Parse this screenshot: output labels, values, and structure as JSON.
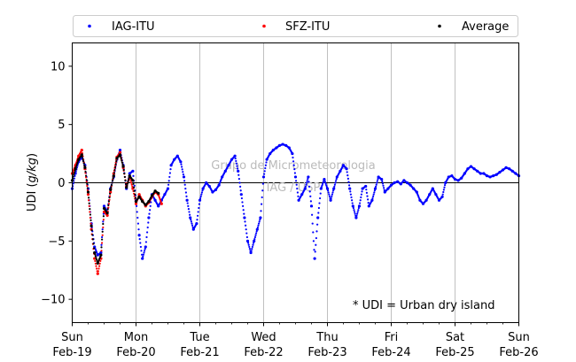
{
  "chart_data": {
    "type": "scatter",
    "ylabel": "UDI (g/kg)",
    "ylabel_prefix": "UDI (",
    "ylabel_unit": "g/kg",
    "ylabel_suffix": ")",
    "ylim": [
      -12,
      12
    ],
    "yticks": [
      -10,
      -5,
      0,
      5,
      10
    ],
    "xlim": [
      "2017-02-19",
      "2017-02-26"
    ],
    "xticks": [
      {
        "weekday": "Sun",
        "date": "Feb-19"
      },
      {
        "weekday": "Mon",
        "date": "Feb-20"
      },
      {
        "weekday": "Tue",
        "date": "Feb-21"
      },
      {
        "weekday": "Wed",
        "date": "Feb-22"
      },
      {
        "weekday": "Thu",
        "date": "Feb-23"
      },
      {
        "weekday": "Fri",
        "date": "Feb-24"
      },
      {
        "weekday": "Sat",
        "date": "Feb-25"
      },
      {
        "weekday": "Sun",
        "date": "Feb-26"
      }
    ],
    "grid": "vertical",
    "zero_line": true,
    "legend_position": "top, outside plot",
    "annotation": "* UDI = Urban dry island",
    "watermark": [
      "Grupo de Micrometeorologia",
      "IAG / USP"
    ],
    "series": [
      {
        "name": "IAG-ITU",
        "color": "#0000ff",
        "x": [
          0.0,
          0.05,
          0.1,
          0.15,
          0.2,
          0.25,
          0.3,
          0.35,
          0.4,
          0.45,
          0.5,
          0.55,
          0.6,
          0.65,
          0.7,
          0.75,
          0.8,
          0.85,
          0.9,
          0.95,
          1.0,
          1.05,
          1.1,
          1.15,
          1.2,
          1.25,
          1.3,
          1.35,
          1.4,
          1.45,
          1.5,
          1.55,
          1.6,
          1.65,
          1.7,
          1.75,
          1.8,
          1.85,
          1.9,
          1.95,
          2.0,
          2.05,
          2.1,
          2.15,
          2.2,
          2.25,
          2.3,
          2.35,
          2.4,
          2.45,
          2.5,
          2.55,
          2.6,
          2.65,
          2.7,
          2.75,
          2.8,
          2.85,
          2.9,
          2.95,
          3.0,
          3.05,
          3.1,
          3.15,
          3.2,
          3.25,
          3.3,
          3.35,
          3.4,
          3.45,
          3.5,
          3.55,
          3.6,
          3.65,
          3.7,
          3.75,
          3.8,
          3.85,
          3.9,
          3.95,
          4.0,
          4.05,
          4.1,
          4.15,
          4.2,
          4.25,
          4.3,
          4.35,
          4.4,
          4.45,
          4.5,
          4.55,
          4.6,
          4.65,
          4.7,
          4.75,
          4.8,
          4.85,
          4.9,
          4.95,
          5.0,
          5.05,
          5.1,
          5.15,
          5.2,
          5.25,
          5.3,
          5.35,
          5.4,
          5.45,
          5.5,
          5.55,
          5.6,
          5.65,
          5.7,
          5.75,
          5.8,
          5.85,
          5.9,
          5.95,
          6.0,
          6.05,
          6.1,
          6.15,
          6.2,
          6.25,
          6.3,
          6.35,
          6.4,
          6.45,
          6.5,
          6.55,
          6.6,
          6.65,
          6.7,
          6.75,
          6.8,
          6.85,
          6.9,
          6.95,
          7.0
        ],
        "y": [
          -0.5,
          0.8,
          1.8,
          2.2,
          1.5,
          -0.5,
          -3.5,
          -5.5,
          -6.2,
          -6.0,
          -2.0,
          -2.5,
          -0.5,
          0.5,
          2.0,
          2.8,
          1.5,
          -0.5,
          0.8,
          1.0,
          -1.5,
          -4.5,
          -6.5,
          -5.5,
          -3.0,
          -1.0,
          -1.5,
          -2.0,
          -1.5,
          -1.0,
          -0.5,
          1.5,
          2.0,
          2.3,
          1.8,
          0.5,
          -1.5,
          -3.0,
          -4.0,
          -3.5,
          -1.5,
          -0.5,
          0.0,
          -0.3,
          -0.8,
          -0.6,
          -0.2,
          0.5,
          1.0,
          1.5,
          2.0,
          2.3,
          1.0,
          -1.0,
          -3.0,
          -5.0,
          -6.0,
          -5.0,
          -4.0,
          -3.0,
          0.5,
          2.0,
          2.5,
          2.8,
          3.0,
          3.2,
          3.3,
          3.2,
          3.0,
          2.5,
          0.5,
          -1.5,
          -1.0,
          -0.5,
          0.5,
          -2.0,
          -6.5,
          -3.0,
          -0.5,
          0.3,
          -0.5,
          -1.5,
          -0.5,
          0.5,
          1.0,
          1.5,
          1.2,
          -0.5,
          -2.0,
          -3.0,
          -2.0,
          -0.5,
          -0.3,
          -2.0,
          -1.5,
          -0.5,
          0.5,
          0.3,
          -0.8,
          -0.5,
          -0.2,
          0.0,
          0.1,
          -0.1,
          0.2,
          0.0,
          -0.2,
          -0.5,
          -0.8,
          -1.5,
          -1.8,
          -1.5,
          -1.0,
          -0.5,
          -1.0,
          -1.5,
          -1.2,
          0.0,
          0.5,
          0.6,
          0.3,
          0.2,
          0.4,
          0.8,
          1.2,
          1.4,
          1.2,
          1.0,
          0.8,
          0.8,
          0.6,
          0.5,
          0.6,
          0.7,
          0.9,
          1.1,
          1.3,
          1.2,
          1.0,
          0.8,
          0.6
        ]
      },
      {
        "name": "SFZ-ITU",
        "color": "#ff0000",
        "x": [
          0.0,
          0.05,
          0.1,
          0.15,
          0.2,
          0.25,
          0.3,
          0.35,
          0.4,
          0.45,
          0.5,
          0.55,
          0.6,
          0.65,
          0.7,
          0.75,
          0.8,
          0.85,
          0.9,
          0.95,
          1.0,
          1.05,
          1.1,
          1.15,
          1.2,
          1.25,
          1.3,
          1.35,
          1.4
        ],
        "y": [
          0.8,
          1.5,
          2.3,
          2.8,
          1.2,
          -1.0,
          -4.0,
          -6.5,
          -7.8,
          -6.5,
          -2.5,
          -2.8,
          -0.8,
          0.8,
          2.2,
          2.6,
          1.3,
          -0.3,
          0.5,
          -0.5,
          -1.8,
          -1.0,
          -1.5,
          -2.0,
          -1.7,
          -1.2,
          -0.8,
          -1.0,
          -1.8
        ]
      },
      {
        "name": "Average",
        "color": "#000000",
        "x": [
          0.0,
          0.05,
          0.1,
          0.15,
          0.2,
          0.25,
          0.3,
          0.35,
          0.4,
          0.45,
          0.5,
          0.55,
          0.6,
          0.65,
          0.7,
          0.75,
          0.8,
          0.85,
          0.9,
          0.95,
          1.0,
          1.05,
          1.1,
          1.15,
          1.2,
          1.25,
          1.3,
          1.35
        ],
        "y": [
          0.2,
          1.2,
          2.0,
          2.4,
          1.3,
          -0.8,
          -3.7,
          -6.0,
          -6.9,
          -6.2,
          -2.2,
          -2.6,
          -0.6,
          0.6,
          2.1,
          2.4,
          1.4,
          -0.4,
          0.6,
          0.2,
          -1.6,
          -1.2,
          -1.6,
          -1.9,
          -1.6,
          -1.1,
          -0.7,
          -0.9
        ]
      }
    ]
  }
}
